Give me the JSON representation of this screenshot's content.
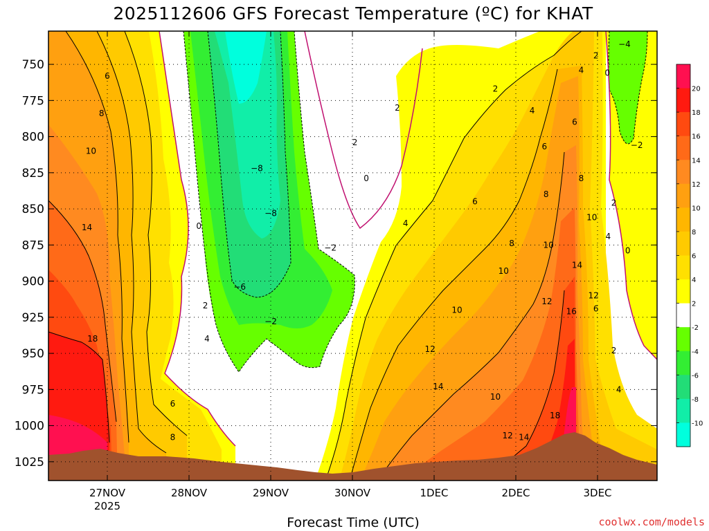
{
  "title": "2025112606 GFS Forecast Temperature (ºC) for KHAT",
  "x_axis_title": "Forecast Time (UTC)",
  "credit": "coolwx.com/models",
  "chart_data": {
    "type": "heatmap",
    "title": "2025112606 GFS Forecast Temperature (ºC) for KHAT",
    "xlabel": "Forecast Time (UTC)",
    "ylabel": "",
    "x_ticks": [
      "27NOV",
      "28NOV",
      "29NOV",
      "30NOV",
      "1DEC",
      "2DEC",
      "3DEC"
    ],
    "x_tick_sub": [
      "2025",
      "",
      "",
      "",
      "",
      "",
      ""
    ],
    "y_ticks": [
      750,
      775,
      800,
      825,
      850,
      875,
      900,
      925,
      950,
      975,
      1000,
      1025
    ],
    "ylim": [
      1038,
      727
    ],
    "grid": true,
    "colorbar": {
      "labels": [
        20,
        18,
        16,
        14,
        12,
        10,
        8,
        6,
        4,
        2,
        -2,
        -4,
        -6,
        -8,
        -10
      ],
      "colors": [
        "#ff1050",
        "#ff1a10",
        "#ff4a10",
        "#ff6a18",
        "#ff8a20",
        "#ffa010",
        "#ffb600",
        "#ffca00",
        "#ffe000",
        "#ffff00",
        "#ffffff",
        "#66ff00",
        "#33ee33",
        "#22dd77",
        "#11eea8",
        "#00ffdd"
      ]
    },
    "contour_labels": [
      {
        "t": "6",
        "x": 1.0,
        "p": 758
      },
      {
        "t": "8",
        "x": 0.93,
        "p": 784
      },
      {
        "t": "10",
        "x": 0.8,
        "p": 810
      },
      {
        "t": "14",
        "x": 0.75,
        "p": 863
      },
      {
        "t": "18",
        "x": 0.82,
        "p": 940
      },
      {
        "t": "6",
        "x": 1.8,
        "p": 985
      },
      {
        "t": "8",
        "x": 1.8,
        "p": 1008
      },
      {
        "t": "0",
        "x": 2.12,
        "p": 862
      },
      {
        "t": "2",
        "x": 2.2,
        "p": 917
      },
      {
        "t": "4",
        "x": 2.22,
        "p": 940
      },
      {
        "t": "−8",
        "x": 2.83,
        "p": 822
      },
      {
        "t": "−8",
        "x": 3.0,
        "p": 853
      },
      {
        "t": "−6",
        "x": 2.62,
        "p": 904
      },
      {
        "t": "−2",
        "x": 3.0,
        "p": 928
      },
      {
        "t": "−2",
        "x": 3.73,
        "p": 877
      },
      {
        "t": "2",
        "x": 4.03,
        "p": 804
      },
      {
        "t": "0",
        "x": 4.17,
        "p": 829
      },
      {
        "t": "2",
        "x": 4.55,
        "p": 780
      },
      {
        "t": "2",
        "x": 5.75,
        "p": 767
      },
      {
        "t": "4",
        "x": 6.2,
        "p": 782
      },
      {
        "t": "4",
        "x": 4.65,
        "p": 860
      },
      {
        "t": "6",
        "x": 5.5,
        "p": 845
      },
      {
        "t": "6",
        "x": 6.35,
        "p": 807
      },
      {
        "t": "8",
        "x": 6.37,
        "p": 840
      },
      {
        "t": "8",
        "x": 5.95,
        "p": 874
      },
      {
        "t": "10",
        "x": 5.85,
        "p": 893
      },
      {
        "t": "10",
        "x": 5.28,
        "p": 920
      },
      {
        "t": "10",
        "x": 6.4,
        "p": 875
      },
      {
        "t": "12",
        "x": 4.95,
        "p": 947
      },
      {
        "t": "12",
        "x": 6.38,
        "p": 914
      },
      {
        "t": "14",
        "x": 5.05,
        "p": 973
      },
      {
        "t": "10",
        "x": 5.75,
        "p": 980
      },
      {
        "t": "12",
        "x": 5.9,
        "p": 1007
      },
      {
        "t": "14",
        "x": 6.1,
        "p": 1008
      },
      {
        "t": "18",
        "x": 6.48,
        "p": 993
      },
      {
        "t": "16",
        "x": 6.68,
        "p": 921
      },
      {
        "t": "14",
        "x": 6.75,
        "p": 889
      },
      {
        "t": "12",
        "x": 6.95,
        "p": 910
      },
      {
        "t": "10",
        "x": 6.93,
        "p": 856
      },
      {
        "t": "8",
        "x": 6.8,
        "p": 829
      },
      {
        "t": "6",
        "x": 6.72,
        "p": 790
      },
      {
        "t": "4",
        "x": 6.8,
        "p": 754
      },
      {
        "t": "2",
        "x": 6.98,
        "p": 744
      },
      {
        "t": "0",
        "x": 7.12,
        "p": 756
      },
      {
        "t": "−4",
        "x": 7.33,
        "p": 736
      },
      {
        "t": "−2",
        "x": 7.48,
        "p": 806
      },
      {
        "t": "2",
        "x": 7.2,
        "p": 846
      },
      {
        "t": "4",
        "x": 7.13,
        "p": 869
      },
      {
        "t": "0",
        "x": 7.37,
        "p": 879
      },
      {
        "t": "6",
        "x": 6.98,
        "p": 919
      },
      {
        "t": "2",
        "x": 7.2,
        "p": 948
      },
      {
        "t": "4",
        "x": 7.26,
        "p": 975
      }
    ]
  }
}
